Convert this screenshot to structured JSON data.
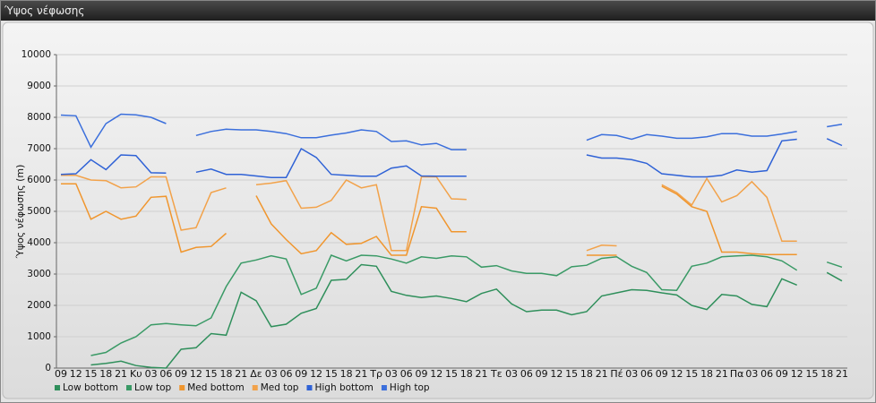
{
  "chart_data": {
    "type": "line",
    "title": "Ύψος νέφωσης",
    "y_label": "Ύψος νέφωσης (m)",
    "categories": [
      "09",
      "12",
      "15",
      "18",
      "21",
      "Κυ",
      "03",
      "06",
      "09",
      "12",
      "15",
      "18",
      "21",
      "Δε",
      "03",
      "06",
      "09",
      "12",
      "15",
      "18",
      "21",
      "Τρ",
      "03",
      "06",
      "09",
      "12",
      "15",
      "18",
      "21",
      "Τε",
      "03",
      "06",
      "09",
      "12",
      "15",
      "18",
      "21",
      "Πέ",
      "03",
      "06",
      "09",
      "12",
      "15",
      "18",
      "21",
      "Πα",
      "03",
      "06",
      "09",
      "12",
      "15",
      "18",
      "21"
    ],
    "ylim": [
      0,
      10000
    ],
    "yticks": [
      0,
      1000,
      2000,
      3000,
      4000,
      5000,
      6000,
      7000,
      8000,
      9000,
      10000
    ],
    "grid": true,
    "series": [
      {
        "name": "Low bottom",
        "color": "#2f8f5b",
        "values": [
          null,
          null,
          100,
          150,
          220,
          80,
          20,
          0,
          600,
          650,
          1100,
          1050,
          2420,
          2150,
          1320,
          1400,
          1750,
          1900,
          2800,
          2830,
          3300,
          3250,
          2450,
          2320,
          2250,
          2300,
          2220,
          2120,
          2380,
          2520,
          2050,
          1800,
          1850,
          1850,
          1700,
          1800,
          2300,
          2400,
          2500,
          2480,
          2400,
          2330,
          2000,
          1870,
          2350,
          2300,
          2030,
          1960,
          2850,
          2650,
          null,
          3050,
          2780
        ]
      },
      {
        "name": "Low top",
        "color": "#3a9a66",
        "values": [
          null,
          null,
          400,
          500,
          800,
          1000,
          1380,
          1420,
          1380,
          1350,
          1600,
          2600,
          3350,
          3450,
          3580,
          3480,
          2350,
          2550,
          3600,
          3420,
          3600,
          3580,
          3480,
          3350,
          3550,
          3500,
          3580,
          3550,
          3220,
          3270,
          3100,
          3020,
          3020,
          2950,
          3230,
          3280,
          3500,
          3550,
          3250,
          3050,
          2500,
          2480,
          3250,
          3350,
          3550,
          3580,
          3600,
          3550,
          3420,
          3120,
          null,
          3380,
          3220
        ]
      },
      {
        "name": "Med bottom",
        "color": "#f0962e",
        "values": [
          5880,
          5880,
          4750,
          5000,
          4750,
          4850,
          5450,
          5480,
          3700,
          3850,
          3880,
          4300,
          null,
          5500,
          4600,
          4100,
          3650,
          3750,
          4320,
          3950,
          3980,
          4200,
          3600,
          3600,
          5150,
          5100,
          4350,
          4350,
          null,
          null,
          null,
          null,
          null,
          null,
          null,
          3600,
          3600,
          3600,
          null,
          null,
          5800,
          5550,
          5150,
          5000,
          3700,
          3700,
          3650,
          3620,
          3620,
          3620,
          null,
          null,
          null
        ]
      },
      {
        "name": "Med top",
        "color": "#f2a24a",
        "values": [
          6150,
          6150,
          6000,
          5980,
          5750,
          5780,
          6100,
          6100,
          4400,
          4480,
          5600,
          5750,
          null,
          5850,
          5900,
          5980,
          5100,
          5130,
          5350,
          6000,
          5750,
          5850,
          3750,
          3750,
          6100,
          6100,
          5400,
          5380,
          null,
          null,
          null,
          null,
          null,
          null,
          null,
          3750,
          3920,
          3900,
          null,
          null,
          5850,
          5600,
          5200,
          6050,
          5300,
          5500,
          5950,
          5450,
          4050,
          4050,
          null,
          null,
          null
        ]
      },
      {
        "name": "High bottom",
        "color": "#2f62d6",
        "values": [
          6180,
          6200,
          6650,
          6330,
          6800,
          6780,
          6230,
          6220,
          null,
          6250,
          6350,
          6180,
          6180,
          6130,
          6080,
          6080,
          7000,
          6720,
          6180,
          6150,
          6120,
          6120,
          6380,
          6450,
          6130,
          6120,
          6120,
          6120,
          null,
          null,
          null,
          null,
          null,
          null,
          null,
          6800,
          6700,
          6700,
          6650,
          6530,
          6200,
          6150,
          6100,
          6100,
          6150,
          6320,
          6250,
          6300,
          7250,
          7300,
          null,
          7320,
          7100
        ]
      },
      {
        "name": "High top",
        "color": "#3b6fdc",
        "values": [
          8070,
          8050,
          7050,
          7800,
          8100,
          8080,
          8000,
          7800,
          null,
          7420,
          7550,
          7620,
          7600,
          7600,
          7550,
          7480,
          7350,
          7350,
          7430,
          7500,
          7600,
          7550,
          7230,
          7250,
          7120,
          7170,
          6970,
          6970,
          null,
          null,
          null,
          null,
          null,
          null,
          null,
          7270,
          7450,
          7420,
          7300,
          7450,
          7400,
          7330,
          7330,
          7380,
          7480,
          7480,
          7400,
          7400,
          7470,
          7550,
          null,
          7700,
          7780
        ]
      }
    ]
  }
}
